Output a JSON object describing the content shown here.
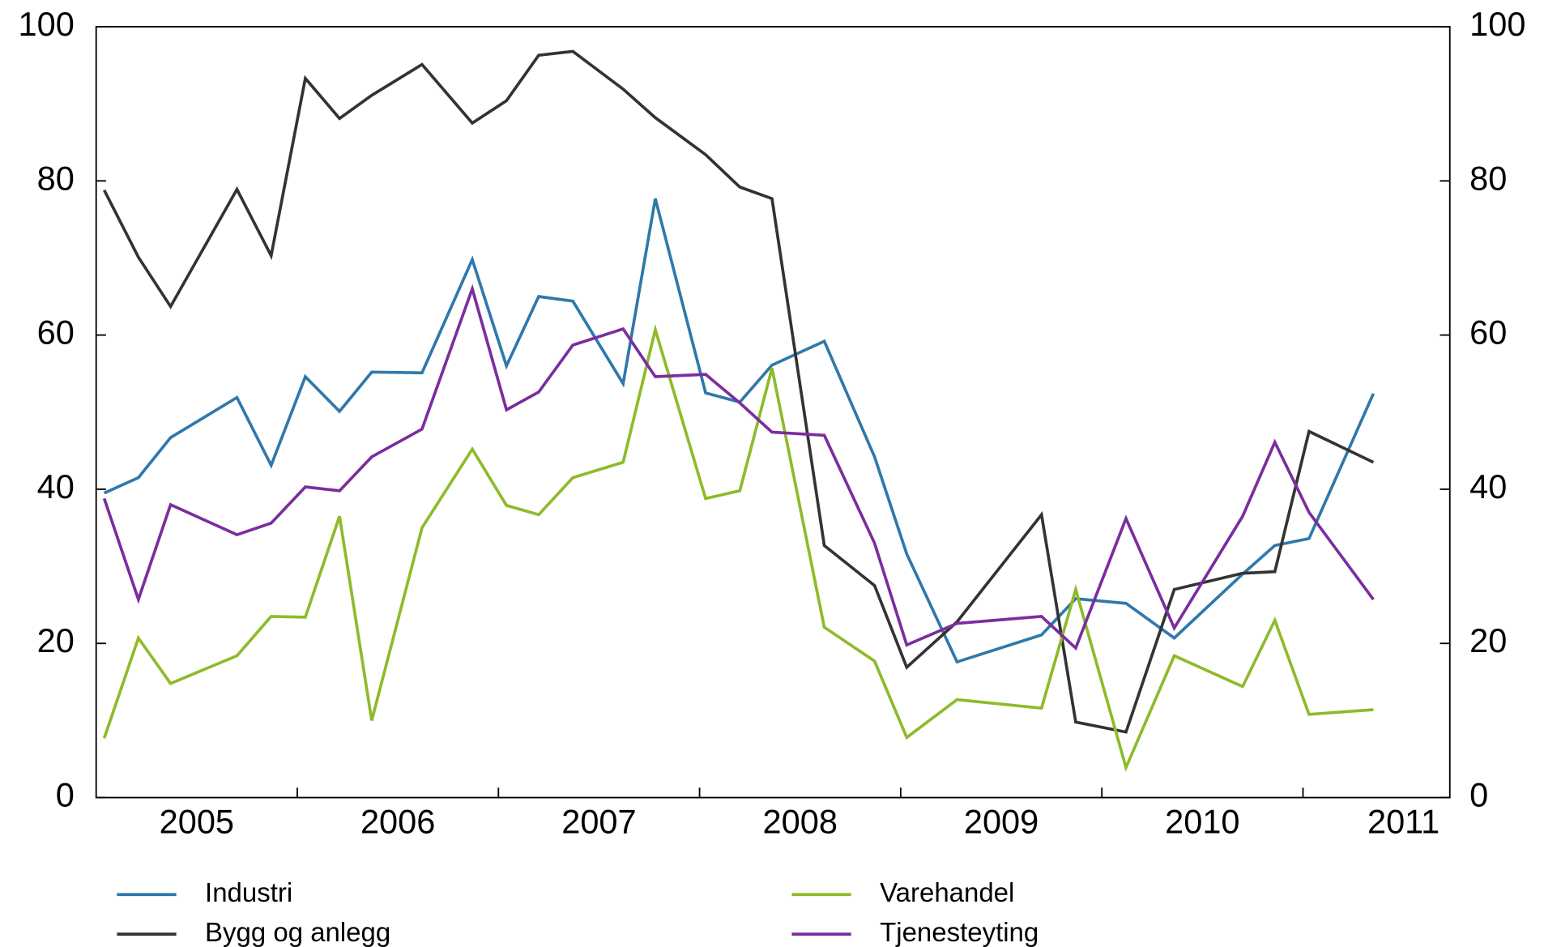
{
  "chart_data": {
    "type": "line",
    "x": [
      2005.04,
      2005.21,
      2005.37,
      2005.7,
      2005.87,
      2006.04,
      2006.21,
      2006.37,
      2006.62,
      2006.87,
      2007.04,
      2007.2,
      2007.37,
      2007.62,
      2007.78,
      2008.03,
      2008.2,
      2008.36,
      2008.62,
      2008.87,
      2009.03,
      2009.28,
      2009.7,
      2009.87,
      2010.12,
      2010.36,
      2010.7,
      2010.86,
      2011.03,
      2011.35
    ],
    "series": [
      {
        "name": "Industri",
        "color": "#2f78ab",
        "values": [
          39.5,
          41.5,
          46.7,
          51.9,
          43.1,
          54.6,
          50.1,
          55.2,
          55.1,
          69.8,
          56,
          65,
          64.4,
          53.7,
          77.7,
          52.5,
          51.3,
          56.1,
          59.2,
          44.2,
          31.6,
          17.6,
          21.1,
          25.8,
          25.2,
          20.7,
          29,
          32.7,
          33.6,
          52.4
        ]
      },
      {
        "name": "Bygg og anlegg",
        "color": "#333333",
        "values": [
          78.8,
          70.1,
          63.7,
          78.9,
          70.3,
          93.3,
          88.1,
          91.1,
          95.1,
          87.5,
          90.4,
          96.3,
          96.8,
          91.9,
          88.2,
          83.4,
          79.2,
          77.7,
          32.7,
          27.5,
          16.9,
          22.8,
          36.7,
          9.8,
          8.5,
          27,
          29.1,
          29.3,
          47.5,
          43.5
        ]
      },
      {
        "name": "Varehandel",
        "color": "#8dbb2a",
        "values": [
          7.7,
          20.7,
          14.8,
          18.4,
          23.5,
          23.4,
          36.5,
          10,
          35,
          45.2,
          37.9,
          36.7,
          41.5,
          43.5,
          60.7,
          38.8,
          39.8,
          55.7,
          22.1,
          17.7,
          7.8,
          12.7,
          11.6,
          27,
          3.9,
          18.4,
          14.4,
          23,
          10.8,
          11.4
        ]
      },
      {
        "name": "Tjenesteyting",
        "color": "#7b2d9e",
        "values": [
          38.8,
          25.7,
          38,
          34.1,
          35.6,
          40.3,
          39.8,
          44.2,
          47.8,
          66,
          50.3,
          52.6,
          58.7,
          60.8,
          54.6,
          54.9,
          51.2,
          47.4,
          47,
          33,
          19.8,
          22.6,
          23.5,
          19.4,
          36.2,
          22,
          36.5,
          46.1,
          37,
          25.7
        ]
      }
    ],
    "xlim": [
      2005,
      2011.73
    ],
    "xticks": [
      {
        "value": 2005.5,
        "label": "2005"
      },
      {
        "value": 2006.5,
        "label": "2006"
      },
      {
        "value": 2007.5,
        "label": "2007"
      },
      {
        "value": 2008.5,
        "label": "2008"
      },
      {
        "value": 2009.5,
        "label": "2009"
      },
      {
        "value": 2010.5,
        "label": "2010"
      },
      {
        "value": 2011.5,
        "label": "2011"
      }
    ],
    "ylim": [
      0,
      100
    ],
    "yticks": [
      0,
      20,
      40,
      60,
      80,
      100
    ],
    "y2lim": [
      0,
      100
    ],
    "y2ticks": [
      0,
      20,
      40,
      60,
      80,
      100
    ]
  }
}
